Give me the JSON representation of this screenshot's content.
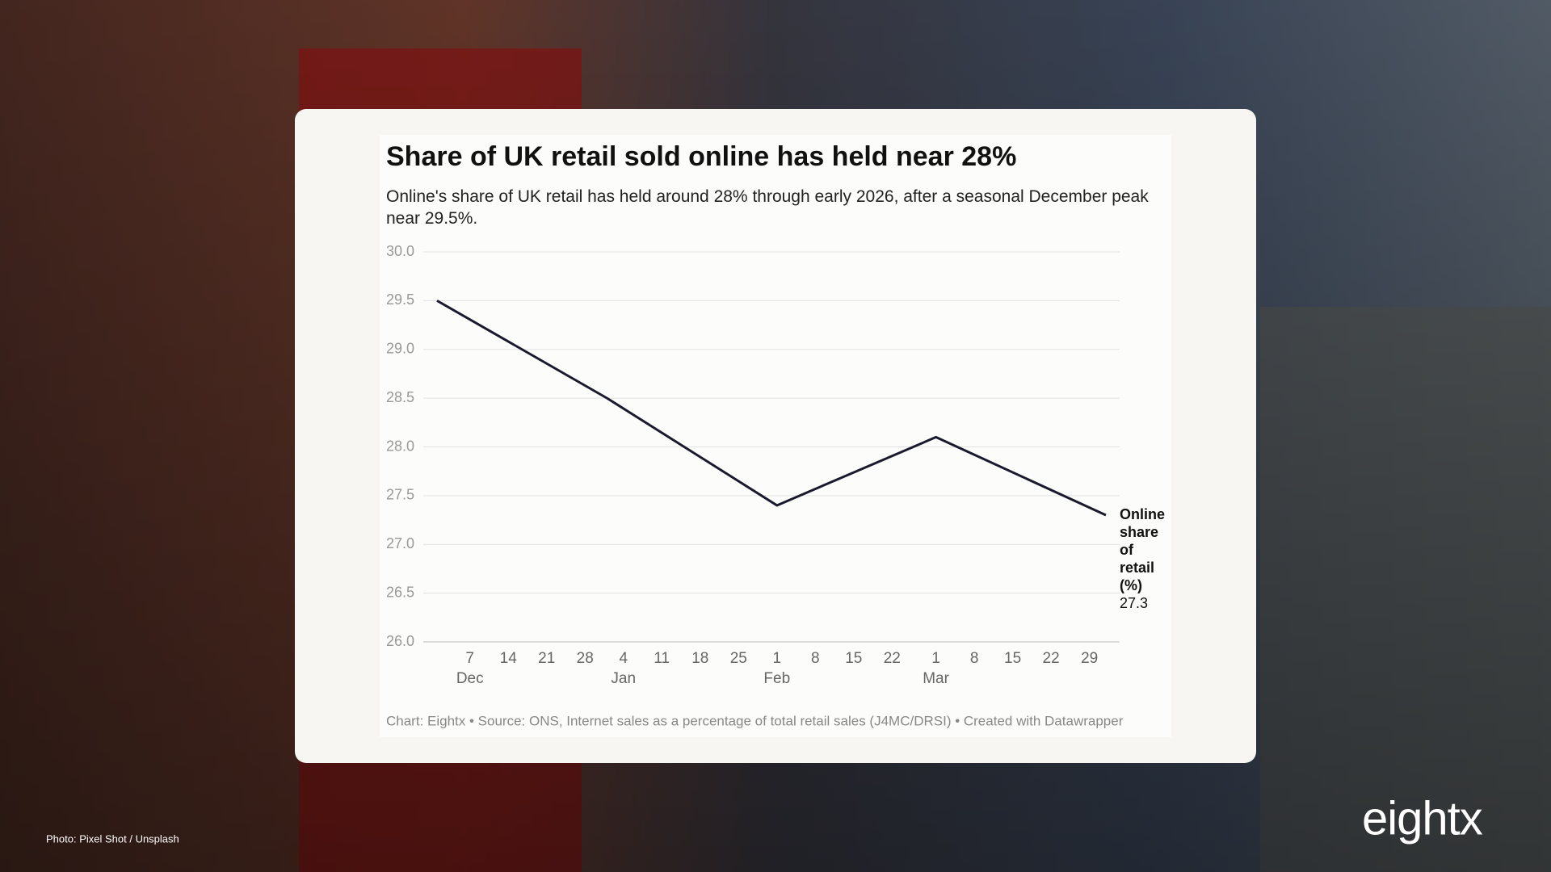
{
  "chart_data": {
    "type": "line",
    "title": "Share of UK retail sold online has held near 28%",
    "subtitle": "Online's share of UK retail has held around 28% through early 2026, after a seasonal December peak near 29.5%.",
    "source": "Chart: Eightx • Source: ONS, Internet sales as a percentage of total retail sales (J4MC/DRSI) • Created with Datawrapper",
    "x": [
      "Dec 1",
      "Jan 1",
      "Feb 1",
      "Mar 1",
      "Apr 1"
    ],
    "series": [
      {
        "name": "Online share of retail (%)",
        "color": "#1a1a2e",
        "values": [
          29.5,
          28.5,
          27.4,
          28.1,
          27.3
        ]
      }
    ],
    "xlim": [
      "Dec 1",
      "Apr 1"
    ],
    "xticks": [
      {
        "value": "Dec 7",
        "label": "7"
      },
      {
        "value": "Dec 14",
        "label": "14"
      },
      {
        "value": "Dec 21",
        "label": "21"
      },
      {
        "value": "Dec 28",
        "label": "28"
      },
      {
        "value": "Jan 4",
        "label": "4"
      },
      {
        "value": "Jan 11",
        "label": "11"
      },
      {
        "value": "Jan 18",
        "label": "18"
      },
      {
        "value": "Jan 25",
        "label": "25"
      },
      {
        "value": "Feb 1",
        "label": "1"
      },
      {
        "value": "Feb 8",
        "label": "8"
      },
      {
        "value": "Feb 15",
        "label": "15"
      },
      {
        "value": "Feb 22",
        "label": "22"
      },
      {
        "value": "Mar 1",
        "label": "1"
      },
      {
        "value": "Mar 8",
        "label": "8"
      },
      {
        "value": "Mar 15",
        "label": "15"
      },
      {
        "value": "Mar 22",
        "label": "22"
      },
      {
        "value": "Mar 29",
        "label": "29"
      }
    ],
    "xtick_months": [
      {
        "value": "Dec 7",
        "label": "Dec"
      },
      {
        "value": "Jan 4",
        "label": "Jan"
      },
      {
        "value": "Feb 1",
        "label": "Feb"
      },
      {
        "value": "Mar 1",
        "label": "Mar"
      }
    ],
    "ylim": [
      26,
      30
    ],
    "yticks": [
      {
        "value": 26,
        "label": "26.0"
      },
      {
        "value": 26.5,
        "label": "26.5"
      },
      {
        "value": 27,
        "label": "27.0"
      },
      {
        "value": 27.5,
        "label": "27.5"
      },
      {
        "value": 28,
        "label": "28.0"
      },
      {
        "value": 28.5,
        "label": "28.5"
      },
      {
        "value": 29,
        "label": "29.0"
      },
      {
        "value": 29.5,
        "label": "29.5"
      },
      {
        "value": 30,
        "label": "30.0"
      }
    ],
    "grid": true
  },
  "photo_credit": "Photo: Pixel Shot / Unsplash",
  "brand": "eightx"
}
